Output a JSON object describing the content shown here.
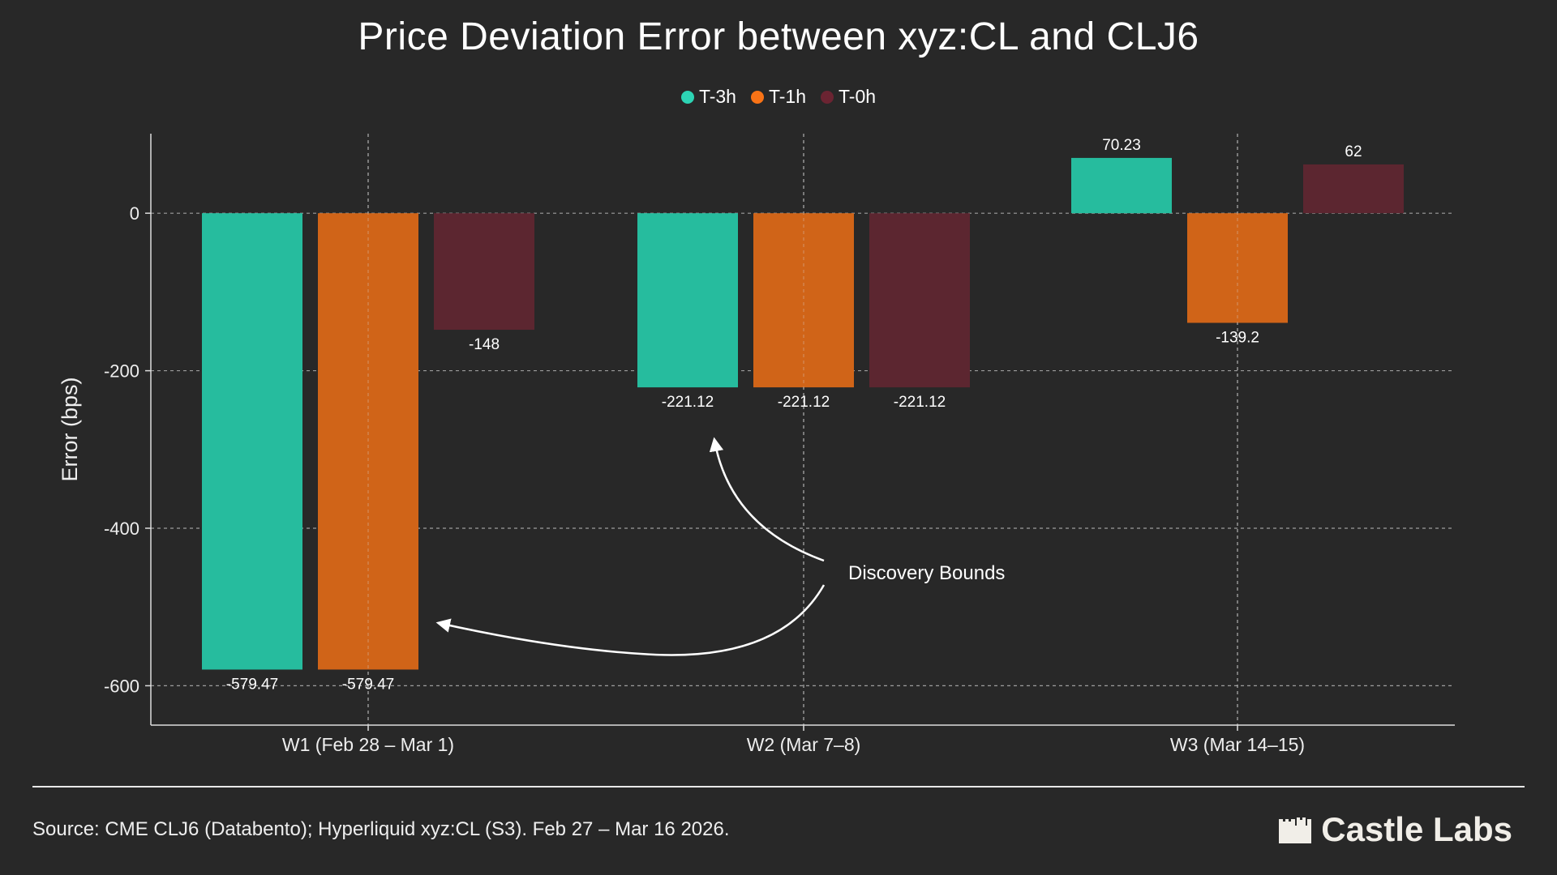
{
  "chart_data": {
    "type": "bar",
    "title": "Price Deviation Error between xyz:CL and CLJ6",
    "ylabel": "Error (bps)",
    "xlabel": "",
    "ylim": [
      -650,
      101
    ],
    "yticks": [
      0,
      -200,
      -400,
      -600
    ],
    "grid": true,
    "legend_placement": "top-center",
    "categories": [
      "W1 (Feb 28 – Mar 1)",
      "W2 (Mar 7–8)",
      "W3 (Mar 14–15)"
    ],
    "series": [
      {
        "name": "T-3h",
        "color": "#26bc9e",
        "legend_color": "#2dd4b4",
        "values": [
          -579.47,
          -221.12,
          70.23
        ],
        "labels": [
          "-579.47",
          "-221.12",
          "70.23"
        ]
      },
      {
        "name": "T-1h",
        "color": "#d06418",
        "legend_color": "#f97316",
        "values": [
          -579.47,
          -221.12,
          -139.2
        ],
        "labels": [
          "-579.47",
          "-221.12",
          "-139.2"
        ]
      },
      {
        "name": "T-0h",
        "color": "#5c2630",
        "legend_color": "#6b2432",
        "values": [
          -148,
          -221.12,
          62
        ],
        "labels": [
          "-148",
          "-221.12",
          "62"
        ]
      }
    ],
    "annotations": [
      {
        "text": "Discovery Bounds"
      }
    ]
  },
  "footer": {
    "source": "Source: CME CLJ6 (Databento); Hyperliquid xyz:CL (S3). Feb 27 – Mar 16 2026.",
    "logo_text": "Castle Labs",
    "logo_icon": "castle-icon"
  }
}
